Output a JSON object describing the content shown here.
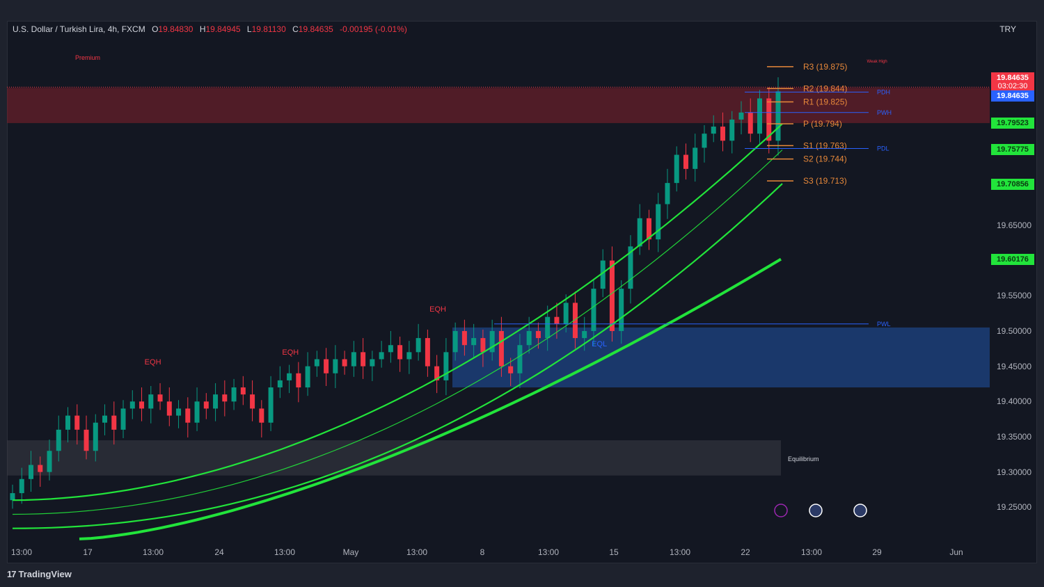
{
  "header": {
    "symbol_title": "U.S. Dollar / Turkish Lira, 4h, FXCM",
    "open_label": "O",
    "open_value": "19.84830",
    "high_label": "H",
    "high_value": "19.84945",
    "low_label": "L",
    "low_value": "19.81130",
    "close_label": "C",
    "close_value": "19.84635",
    "change_value": "-0.00195 (-0.01%)",
    "currency": "TRY"
  },
  "branding": {
    "logo": "17",
    "name": "TradingView"
  },
  "colors": {
    "up": "#089981",
    "down": "#f23645",
    "ema": "#22e43b",
    "pivot": "#e8893a",
    "premium_zone": "#7a1f2b",
    "demand_zone": "#1f4f9c",
    "equilibrium_zone": "#3a3d46",
    "level_blue": "#2962ff"
  },
  "chart_data": {
    "type": "candlestick",
    "timeframe": "4h",
    "symbol": "USD/TRY",
    "y_range": [
      19.2,
      19.94
    ],
    "price_ticks": [
      "19.25000",
      "19.30000",
      "19.35000",
      "19.40000",
      "19.45000",
      "19.50000",
      "19.55000",
      "19.65000"
    ],
    "time_ticks": [
      "13:00",
      "17",
      "13:00",
      "24",
      "13:00",
      "May",
      "13:00",
      "8",
      "13:00",
      "15",
      "13:00",
      "22",
      "13:00",
      "29",
      "Jun"
    ],
    "ohlc_close_path": [
      19.27,
      19.29,
      19.31,
      19.3,
      19.33,
      19.36,
      19.38,
      19.36,
      19.33,
      19.37,
      19.38,
      19.36,
      19.39,
      19.4,
      19.39,
      19.41,
      19.4,
      19.38,
      19.39,
      19.37,
      19.4,
      19.39,
      19.41,
      19.4,
      19.42,
      19.41,
      19.39,
      19.37,
      19.42,
      19.43,
      19.44,
      19.42,
      19.45,
      19.46,
      19.44,
      19.46,
      19.45,
      19.47,
      19.45,
      19.46,
      19.47,
      19.48,
      19.46,
      19.47,
      19.49,
      19.45,
      19.43,
      19.47,
      19.5,
      19.48,
      19.49,
      19.47,
      19.5,
      19.45,
      19.44,
      19.48,
      19.5,
      19.49,
      19.52,
      19.51,
      19.54,
      19.49,
      19.5,
      19.56,
      19.6,
      19.5,
      19.56,
      19.62,
      19.66,
      19.63,
      19.68,
      19.71,
      19.75,
      19.73,
      19.76,
      19.78,
      19.79,
      19.77,
      19.8,
      19.81,
      19.78,
      19.83,
      19.77,
      19.84
    ],
    "ema_fast_end": 19.794,
    "ema_mid_end": 19.757,
    "ema_slow_end": 19.709,
    "ema_long_end": 19.602,
    "pivot_levels": [
      {
        "label": "R3 (19.875)",
        "value": 19.875
      },
      {
        "label": "R2 (19.844)",
        "value": 19.844
      },
      {
        "label": "R1 (19.825)",
        "value": 19.825
      },
      {
        "label": "P (19.794)",
        "value": 19.794
      },
      {
        "label": "S1 (19.763)",
        "value": 19.763
      },
      {
        "label": "S2 (19.744)",
        "value": 19.744
      },
      {
        "label": "S3 (19.713)",
        "value": 19.713
      }
    ],
    "key_levels": [
      {
        "label": "PDH",
        "value": 19.839
      },
      {
        "label": "PWH",
        "value": 19.81
      },
      {
        "label": "PDL",
        "value": 19.759
      },
      {
        "label": "PWL",
        "value": 19.51
      }
    ],
    "zones": [
      {
        "label": "Premium",
        "top": 19.845,
        "bottom": 19.795,
        "kind": "premium"
      },
      {
        "label": "",
        "top": 19.505,
        "bottom": 19.42,
        "kind": "demand"
      },
      {
        "label": "Equilibrium",
        "top": 19.345,
        "bottom": 19.295,
        "kind": "equilibrium"
      }
    ],
    "annotations": [
      {
        "text": "EQH",
        "x_frac": 0.14
      },
      {
        "text": "EQH",
        "x_frac": 0.28
      },
      {
        "text": "EQH",
        "x_frac": 0.43
      },
      {
        "text": "Weak High",
        "x_frac": 0.875
      },
      {
        "text": "EQL",
        "x_frac": 0.595
      }
    ],
    "price_badges": [
      {
        "value": "19.84635",
        "sub": "03:02:30",
        "color": "#f23645"
      },
      {
        "value": "19.84635",
        "sub": "",
        "color": "#2962ff"
      },
      {
        "value": "19.79523",
        "sub": "",
        "color": "#22e43b"
      },
      {
        "value": "19.75775",
        "sub": "",
        "color": "#22e43b"
      },
      {
        "value": "19.70856",
        "sub": "",
        "color": "#22e43b"
      },
      {
        "value": "19.60176",
        "sub": "",
        "color": "#22e43b"
      }
    ]
  }
}
